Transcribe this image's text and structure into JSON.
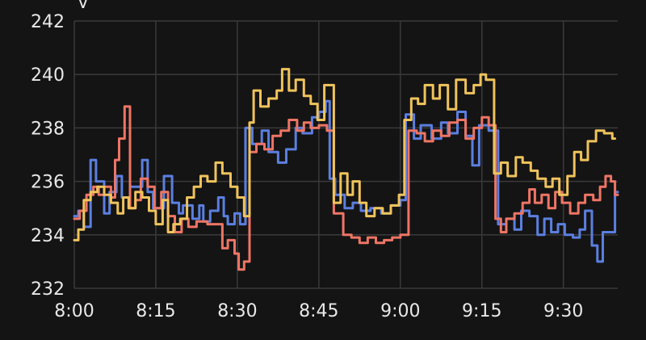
{
  "chart_data": {
    "type": "line",
    "step": true,
    "title": "",
    "xlabel": "",
    "ylabel": "V",
    "x_domain_minutes": [
      0,
      40
    ],
    "ylim": [
      232,
      242
    ],
    "y_ticks": [
      232,
      234,
      236,
      238,
      240,
      242
    ],
    "x_ticks": [
      {
        "minute": 0,
        "label": "8:00"
      },
      {
        "minute": 6,
        "label": "8:15"
      },
      {
        "minute": 12,
        "label": "8:30"
      },
      {
        "minute": 18,
        "label": "8:45"
      },
      {
        "minute": 24,
        "label": "9:00"
      },
      {
        "minute": 30,
        "label": "9:15"
      },
      {
        "minute": 36,
        "label": "9:30"
      }
    ],
    "grid": true,
    "series": [
      {
        "color": "#5b7fe0",
        "points": [
          [
            0.0,
            234.7
          ],
          [
            0.3,
            234.9
          ],
          [
            0.7,
            234.3
          ],
          [
            1.2,
            236.8
          ],
          [
            1.6,
            236.0
          ],
          [
            2.2,
            234.8
          ],
          [
            2.6,
            235.6
          ],
          [
            3.1,
            236.2
          ],
          [
            3.5,
            235.4
          ],
          [
            4.1,
            235.8
          ],
          [
            5.0,
            236.8
          ],
          [
            5.4,
            235.6
          ],
          [
            5.8,
            235.0
          ],
          [
            6.6,
            236.2
          ],
          [
            7.2,
            235.2
          ],
          [
            7.7,
            234.8
          ],
          [
            8.0,
            235.1
          ],
          [
            8.7,
            234.6
          ],
          [
            9.2,
            235.1
          ],
          [
            9.5,
            234.5
          ],
          [
            10.0,
            234.9
          ],
          [
            10.6,
            235.4
          ],
          [
            11.0,
            234.7
          ],
          [
            11.3,
            234.4
          ],
          [
            11.8,
            234.8
          ],
          [
            12.2,
            234.4
          ],
          [
            12.6,
            238.0
          ],
          [
            13.1,
            237.4
          ],
          [
            13.8,
            237.9
          ],
          [
            14.3,
            237.1
          ],
          [
            15.0,
            236.7
          ],
          [
            15.6,
            237.2
          ],
          [
            16.3,
            238.0
          ],
          [
            16.8,
            237.8
          ],
          [
            17.5,
            238.4
          ],
          [
            18.0,
            238.6
          ],
          [
            18.5,
            239.0
          ],
          [
            18.8,
            236.1
          ],
          [
            19.2,
            235.5
          ],
          [
            19.9,
            235.0
          ],
          [
            20.5,
            235.2
          ],
          [
            21.1,
            234.9
          ],
          [
            21.8,
            235.0
          ],
          [
            22.6,
            234.8
          ],
          [
            23.3,
            235.1
          ],
          [
            24.0,
            235.3
          ],
          [
            24.4,
            238.5
          ],
          [
            25.0,
            237.6
          ],
          [
            25.5,
            238.1
          ],
          [
            26.3,
            237.6
          ],
          [
            27.0,
            238.2
          ],
          [
            27.5,
            237.8
          ],
          [
            28.2,
            238.6
          ],
          [
            28.8,
            237.7
          ],
          [
            29.3,
            236.6
          ],
          [
            29.8,
            238.1
          ],
          [
            30.5,
            237.9
          ],
          [
            31.2,
            234.4
          ],
          [
            31.8,
            234.6
          ],
          [
            32.4,
            234.2
          ],
          [
            32.9,
            234.9
          ],
          [
            33.5,
            234.7
          ],
          [
            34.1,
            234.0
          ],
          [
            34.6,
            234.6
          ],
          [
            35.1,
            234.1
          ],
          [
            35.6,
            234.4
          ],
          [
            36.1,
            234.0
          ],
          [
            36.7,
            233.9
          ],
          [
            37.2,
            234.2
          ],
          [
            37.6,
            234.9
          ],
          [
            38.1,
            233.6
          ],
          [
            38.5,
            233.0
          ],
          [
            38.9,
            234.1
          ],
          [
            39.5,
            234.1
          ],
          [
            39.8,
            235.6
          ]
        ]
      },
      {
        "color": "#ee7565",
        "points": [
          [
            0.0,
            234.6
          ],
          [
            0.4,
            234.9
          ],
          [
            0.9,
            235.5
          ],
          [
            1.4,
            235.8
          ],
          [
            1.8,
            235.5
          ],
          [
            2.2,
            235.8
          ],
          [
            2.7,
            235.4
          ],
          [
            3.0,
            236.8
          ],
          [
            3.3,
            237.6
          ],
          [
            3.7,
            238.8
          ],
          [
            4.1,
            235.0
          ],
          [
            4.5,
            235.3
          ],
          [
            4.9,
            236.1
          ],
          [
            5.4,
            235.8
          ],
          [
            5.9,
            235.0
          ],
          [
            6.4,
            235.6
          ],
          [
            6.9,
            234.7
          ],
          [
            7.4,
            234.1
          ],
          [
            7.9,
            234.6
          ],
          [
            8.4,
            234.3
          ],
          [
            9.0,
            234.5
          ],
          [
            9.8,
            234.4
          ],
          [
            10.4,
            234.4
          ],
          [
            10.9,
            233.5
          ],
          [
            11.3,
            233.8
          ],
          [
            11.8,
            233.3
          ],
          [
            12.1,
            232.7
          ],
          [
            12.5,
            233.0
          ],
          [
            12.9,
            237.1
          ],
          [
            13.4,
            237.4
          ],
          [
            14.0,
            237.2
          ],
          [
            14.6,
            237.7
          ],
          [
            15.2,
            237.9
          ],
          [
            15.8,
            238.3
          ],
          [
            16.4,
            237.9
          ],
          [
            16.9,
            238.2
          ],
          [
            17.4,
            238.0
          ],
          [
            18.0,
            238.1
          ],
          [
            18.6,
            237.9
          ],
          [
            19.1,
            234.8
          ],
          [
            19.8,
            234.0
          ],
          [
            20.4,
            233.9
          ],
          [
            21.0,
            233.7
          ],
          [
            21.6,
            233.9
          ],
          [
            22.2,
            233.7
          ],
          [
            22.8,
            233.8
          ],
          [
            23.4,
            233.9
          ],
          [
            24.0,
            234.0
          ],
          [
            24.6,
            237.9
          ],
          [
            25.2,
            237.8
          ],
          [
            25.8,
            237.5
          ],
          [
            26.4,
            237.9
          ],
          [
            27.0,
            237.7
          ],
          [
            27.6,
            238.2
          ],
          [
            28.2,
            238.3
          ],
          [
            28.8,
            237.6
          ],
          [
            29.4,
            238.0
          ],
          [
            30.0,
            238.4
          ],
          [
            30.5,
            238.1
          ],
          [
            31.0,
            234.6
          ],
          [
            31.4,
            234.1
          ],
          [
            31.8,
            234.6
          ],
          [
            32.4,
            234.8
          ],
          [
            33.0,
            235.2
          ],
          [
            33.5,
            235.7
          ],
          [
            33.9,
            235.2
          ],
          [
            34.4,
            235.5
          ],
          [
            34.9,
            235.0
          ],
          [
            35.4,
            235.6
          ],
          [
            35.9,
            235.2
          ],
          [
            36.5,
            234.8
          ],
          [
            37.1,
            235.2
          ],
          [
            37.6,
            235.5
          ],
          [
            38.2,
            235.3
          ],
          [
            38.7,
            235.8
          ],
          [
            39.1,
            236.2
          ],
          [
            39.5,
            236.0
          ],
          [
            39.8,
            235.5
          ]
        ]
      },
      {
        "color": "#efc35c",
        "points": [
          [
            0.0,
            233.8
          ],
          [
            0.3,
            234.2
          ],
          [
            0.7,
            235.3
          ],
          [
            1.2,
            235.6
          ],
          [
            1.7,
            235.8
          ],
          [
            2.2,
            235.5
          ],
          [
            2.7,
            235.2
          ],
          [
            3.2,
            234.8
          ],
          [
            3.6,
            235.4
          ],
          [
            4.0,
            235.0
          ],
          [
            4.5,
            235.6
          ],
          [
            5.0,
            235.4
          ],
          [
            5.5,
            234.9
          ],
          [
            6.0,
            234.4
          ],
          [
            6.5,
            235.3
          ],
          [
            6.9,
            234.1
          ],
          [
            7.3,
            234.4
          ],
          [
            7.8,
            234.6
          ],
          [
            8.3,
            235.4
          ],
          [
            8.8,
            235.8
          ],
          [
            9.3,
            236.2
          ],
          [
            9.8,
            236.0
          ],
          [
            10.4,
            236.7
          ],
          [
            10.9,
            236.3
          ],
          [
            11.5,
            235.8
          ],
          [
            12.0,
            235.4
          ],
          [
            12.5,
            234.7
          ],
          [
            12.9,
            238.2
          ],
          [
            13.2,
            239.4
          ],
          [
            13.7,
            238.8
          ],
          [
            14.3,
            239.1
          ],
          [
            14.9,
            239.4
          ],
          [
            15.3,
            240.2
          ],
          [
            15.8,
            239.4
          ],
          [
            16.3,
            239.8
          ],
          [
            16.9,
            239.2
          ],
          [
            17.4,
            238.9
          ],
          [
            17.9,
            238.3
          ],
          [
            18.4,
            239.6
          ],
          [
            19.1,
            235.2
          ],
          [
            19.6,
            236.3
          ],
          [
            20.1,
            235.5
          ],
          [
            20.5,
            236.0
          ],
          [
            21.0,
            235.2
          ],
          [
            21.5,
            234.7
          ],
          [
            22.1,
            235.0
          ],
          [
            22.7,
            234.8
          ],
          [
            23.3,
            235.1
          ],
          [
            23.9,
            235.5
          ],
          [
            24.3,
            238.3
          ],
          [
            24.8,
            239.1
          ],
          [
            25.3,
            238.9
          ],
          [
            25.8,
            239.6
          ],
          [
            26.4,
            239.1
          ],
          [
            26.9,
            239.6
          ],
          [
            27.5,
            238.7
          ],
          [
            28.1,
            239.8
          ],
          [
            28.8,
            239.3
          ],
          [
            29.4,
            239.6
          ],
          [
            29.9,
            240.0
          ],
          [
            30.3,
            239.8
          ],
          [
            30.9,
            236.3
          ],
          [
            31.4,
            236.7
          ],
          [
            31.9,
            236.2
          ],
          [
            32.5,
            236.9
          ],
          [
            33.0,
            236.7
          ],
          [
            33.6,
            236.4
          ],
          [
            34.1,
            236.1
          ],
          [
            34.7,
            235.8
          ],
          [
            35.2,
            236.1
          ],
          [
            35.7,
            235.5
          ],
          [
            36.3,
            236.2
          ],
          [
            36.8,
            237.1
          ],
          [
            37.3,
            236.8
          ],
          [
            37.8,
            237.5
          ],
          [
            38.4,
            237.9
          ],
          [
            39.0,
            237.8
          ],
          [
            39.6,
            237.6
          ]
        ]
      }
    ]
  }
}
